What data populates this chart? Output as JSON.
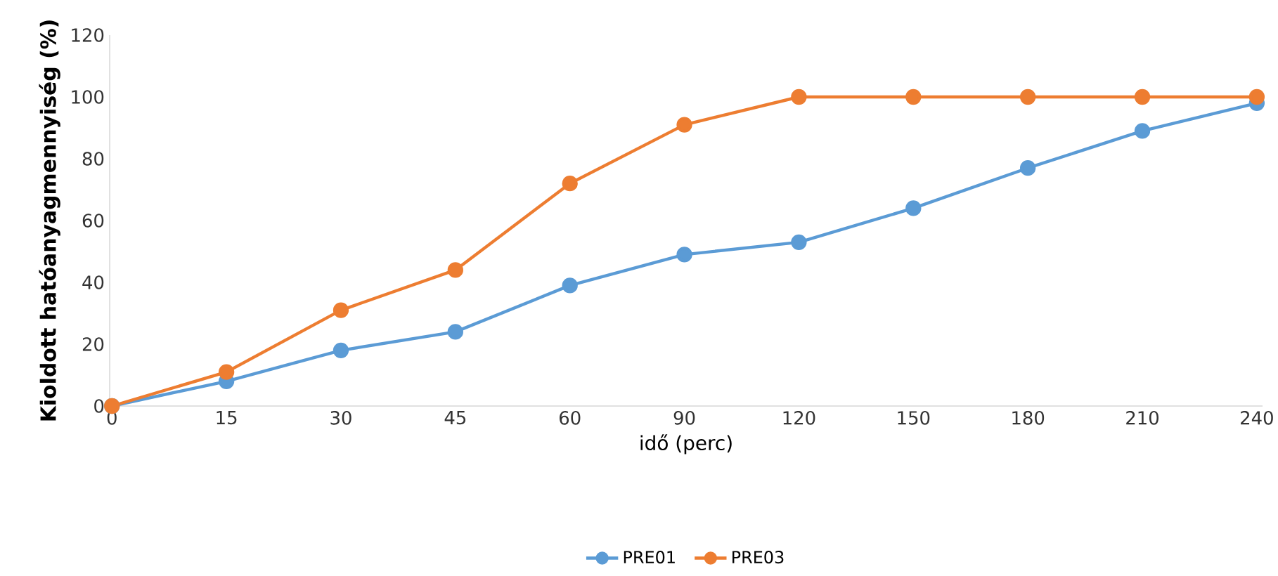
{
  "chart_data": {
    "type": "line",
    "xlabel": "idő (perc)",
    "ylabel": "**Kioldott hatóanyagmennyiség (%)**",
    "categories": [
      "0",
      "15",
      "30",
      "45",
      "60",
      "90",
      "120",
      "150",
      "180",
      "210",
      "240"
    ],
    "series": [
      {
        "name": "PRE01",
        "color": "#5b9bd5",
        "values": [
          0,
          8,
          18,
          24,
          39,
          49,
          53,
          64,
          77,
          89,
          98
        ]
      },
      {
        "name": "PRE03",
        "color": "#ed7d31",
        "values": [
          0,
          11,
          31,
          44,
          72,
          91,
          100,
          100,
          100,
          100,
          100
        ]
      }
    ],
    "ylim": [
      0,
      120
    ],
    "yticks": [
      0,
      20,
      40,
      60,
      80,
      100,
      120
    ],
    "grid": false,
    "legend": "bottom",
    "marker": "circle",
    "line_style": "solid"
  }
}
